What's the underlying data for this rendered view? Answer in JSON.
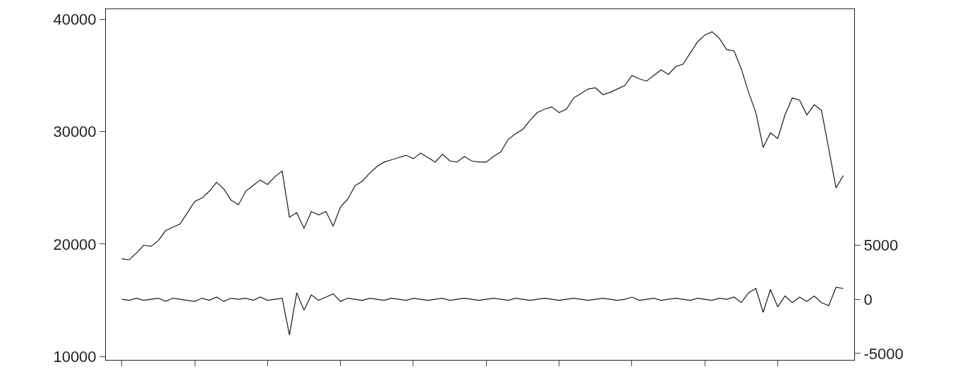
{
  "chart_data": {
    "type": "line",
    "categories": [
      null,
      null,
      null,
      null,
      null,
      null,
      null,
      null,
      null,
      null,
      null,
      null,
      null,
      null,
      null,
      null,
      null,
      null,
      null,
      null,
      null,
      null,
      null,
      null,
      null,
      null,
      null,
      null,
      null,
      null,
      null,
      null,
      null,
      null,
      null,
      null,
      null,
      null,
      null,
      null,
      null,
      null,
      null,
      null,
      null,
      null,
      null,
      null,
      null,
      null,
      null,
      null,
      null,
      null,
      null,
      null,
      null,
      null,
      null,
      null,
      null,
      null,
      null,
      null,
      null,
      null,
      null,
      null,
      null,
      null,
      null,
      null,
      null,
      null,
      null,
      null,
      null,
      null,
      null,
      null,
      null,
      null,
      null,
      null,
      null,
      null,
      null,
      null,
      null,
      null,
      null,
      null,
      null,
      null,
      null,
      null,
      null,
      null,
      null,
      null
    ],
    "series": [
      {
        "color": "#1a1a1a",
        "values": [
          18700,
          18600,
          19200,
          19900,
          19800,
          20300,
          21200,
          21500,
          21800,
          22800,
          23800,
          24100,
          24700,
          25500,
          24900,
          23900,
          23500,
          24700,
          25200,
          25700,
          25300,
          26000,
          26500,
          22400,
          22800,
          21400,
          22900,
          22600,
          22900,
          21600,
          23300,
          24000,
          25200,
          25600,
          26300,
          26900,
          27300,
          27500,
          27700,
          27900,
          27600,
          28100,
          27700,
          27300,
          28000,
          27400,
          27300,
          27800,
          27400,
          27300,
          27300,
          27800,
          28200,
          29300,
          29800,
          30200,
          31000,
          31700,
          32000,
          32200,
          31700,
          32000,
          33000,
          33400,
          33800,
          33900,
          33300,
          33500,
          33800,
          34100,
          35000,
          34700,
          34500,
          35000,
          35500,
          35100,
          35800,
          36000,
          37000,
          38000,
          38600,
          38900,
          38300,
          37300,
          37200,
          35600,
          33500,
          31700,
          28600,
          29900,
          29400,
          31500,
          33000,
          32800,
          31500,
          32400,
          31900,
          28500,
          25000,
          26100
        ]
      },
      {
        "color": "#1a1a1a",
        "axis": "y2",
        "values": [
          0,
          -100,
          100,
          -100,
          0,
          100,
          -200,
          100,
          0,
          -100,
          -200,
          100,
          -100,
          200,
          -200,
          100,
          0,
          100,
          -100,
          200,
          -100,
          0,
          100,
          -3300,
          600,
          -1000,
          400,
          -100,
          200,
          500,
          -200,
          100,
          0,
          -100,
          100,
          0,
          -100,
          100,
          0,
          -100,
          100,
          0,
          -100,
          0,
          100,
          -100,
          0,
          100,
          0,
          -100,
          0,
          100,
          0,
          -100,
          100,
          0,
          -100,
          0,
          100,
          0,
          -100,
          0,
          100,
          0,
          -100,
          0,
          100,
          0,
          -100,
          0,
          200,
          -100,
          0,
          100,
          -100,
          0,
          100,
          0,
          -100,
          100,
          0,
          -100,
          100,
          0,
          200,
          -300,
          600,
          1000,
          -1200,
          900,
          -700,
          300,
          -300,
          200,
          -200,
          300,
          -300,
          -600,
          1100,
          1000
        ]
      }
    ],
    "ylim": [
      9700,
      40900
    ],
    "yticks": [
      10000,
      20000,
      30000,
      40000
    ],
    "y2lim": [
      -5600,
      26800
    ],
    "y2ticks": [
      -5000,
      0,
      5000
    ],
    "tick_labels": "y",
    "marker": "none",
    "line_style": "solid"
  }
}
